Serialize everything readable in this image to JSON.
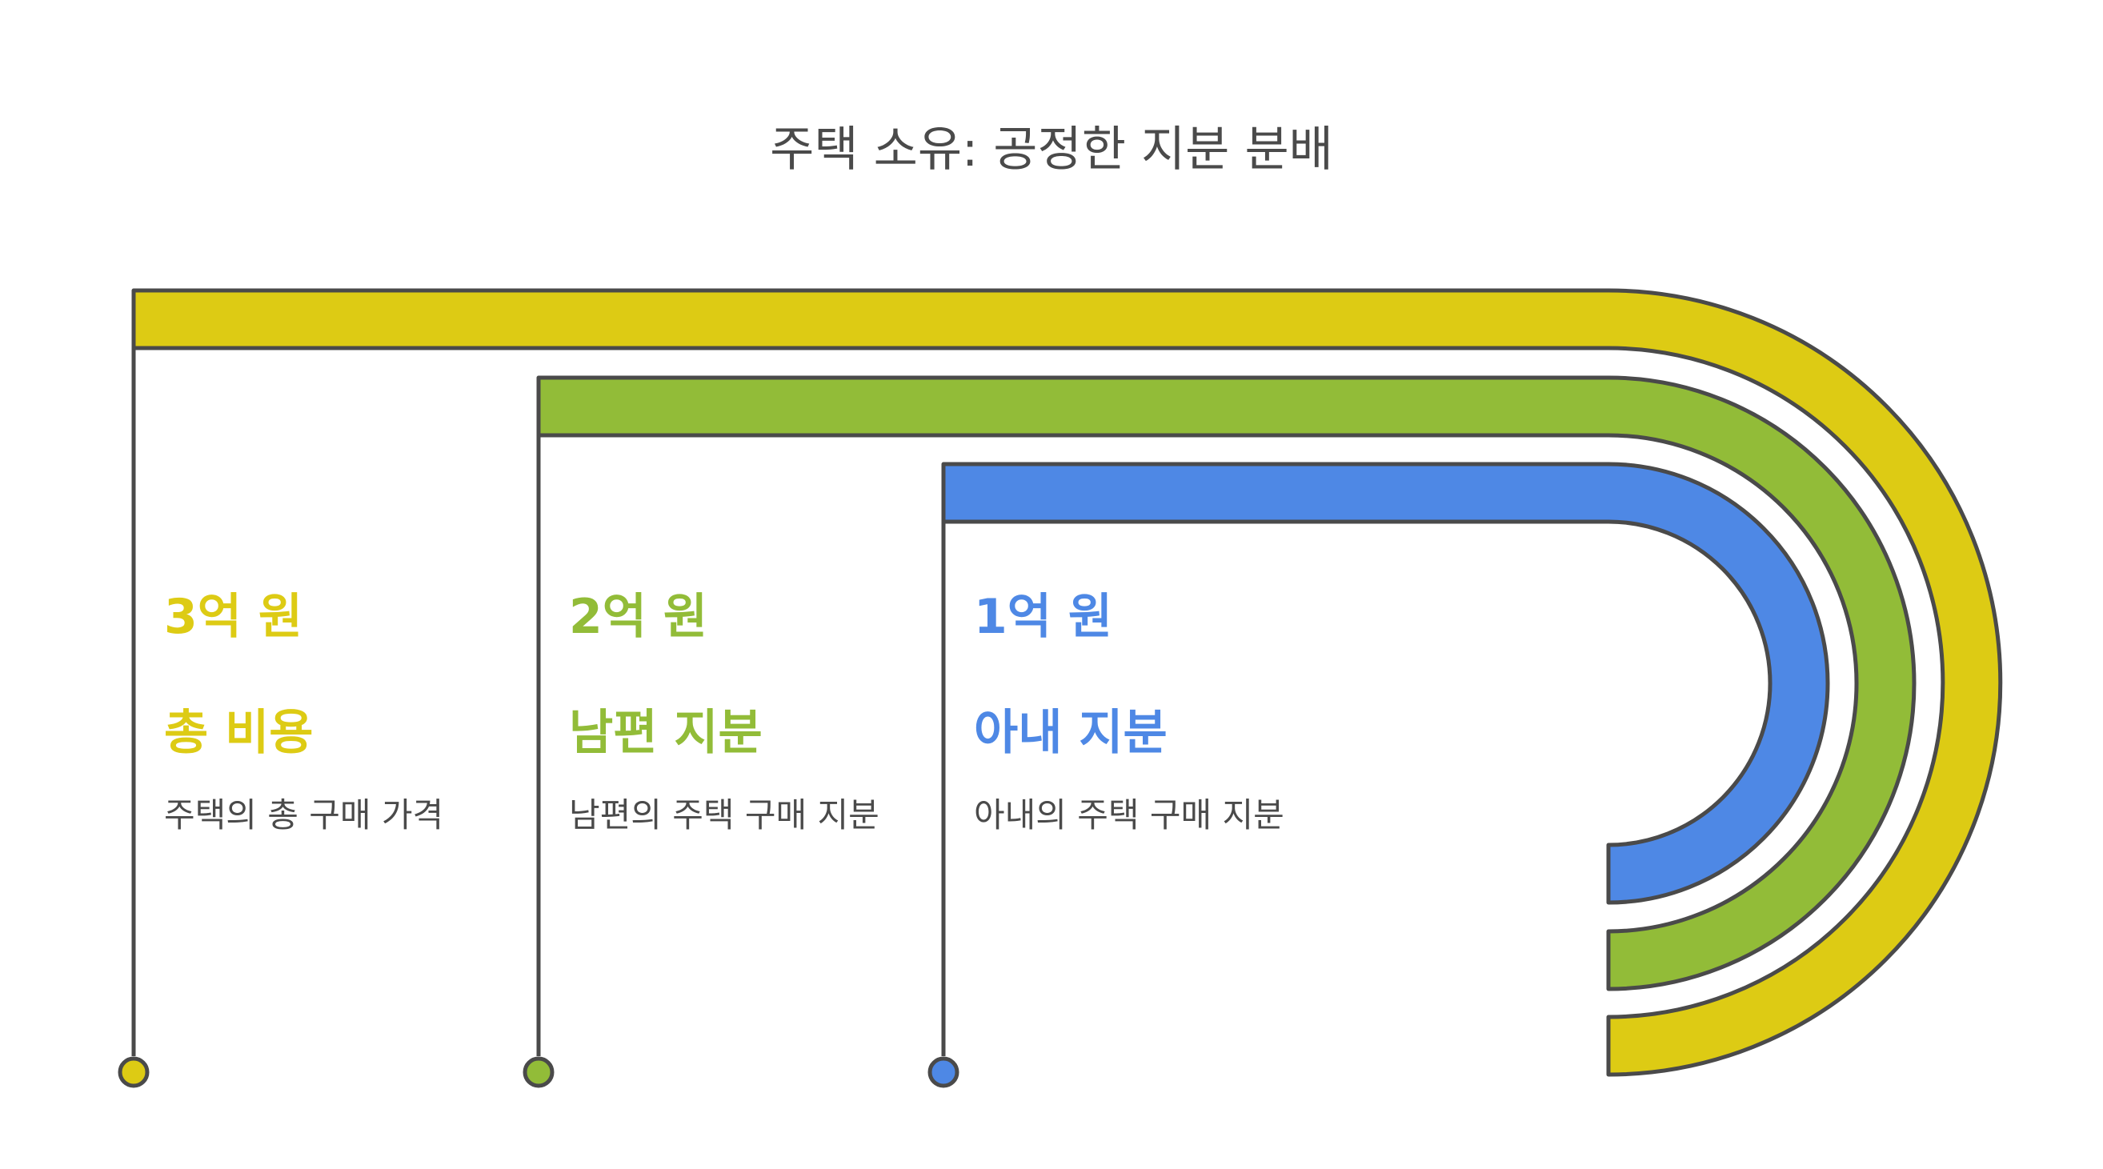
{
  "title": "주택 소유: 공정한 지분 분배",
  "colors": {
    "outline": "#4a4a4a"
  },
  "items": [
    {
      "amount": "3억 원",
      "label": "총 비용",
      "desc": "주택의 총 구매 가격",
      "color": "#ddcb14"
    },
    {
      "amount": "2억 원",
      "label": "남편 지분",
      "desc": "남편의 주택 구매 지분",
      "color": "#92bc38"
    },
    {
      "amount": "1억 원",
      "label": "아내 지분",
      "desc": "아내의 주택 구매 지분",
      "color": "#4e88e5"
    }
  ]
}
